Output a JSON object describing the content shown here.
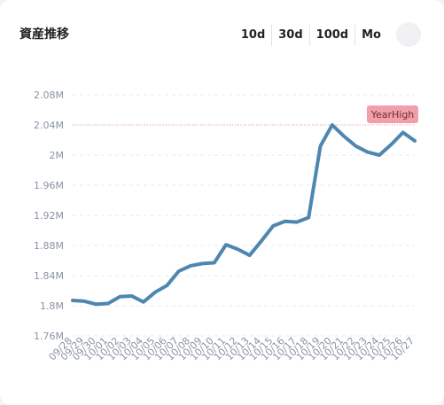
{
  "title": "資産推移",
  "buttons": [
    "10d",
    "30d",
    "100d",
    "Mo"
  ],
  "chart_data": {
    "type": "line",
    "categories": [
      "09/28",
      "09/29",
      "09/30",
      "10/01",
      "10/02",
      "10/03",
      "10/04",
      "10/05",
      "10/06",
      "10/07",
      "10/08",
      "10/09",
      "10/10",
      "10/11",
      "10/12",
      "10/13",
      "10/14",
      "10/15",
      "10/16",
      "10/17",
      "10/18",
      "10/19",
      "10/20",
      "10/21",
      "10/22",
      "10/23",
      "10/24",
      "10/25",
      "10/26",
      "10/27"
    ],
    "values": [
      1807000,
      1806000,
      1802000,
      1803000,
      1812000,
      1813000,
      1805000,
      1818000,
      1827000,
      1846000,
      1853000,
      1856000,
      1857000,
      1881000,
      1875000,
      1867000,
      1886000,
      1906000,
      1912000,
      1911000,
      1917000,
      2012000,
      2040000,
      2025000,
      2012000,
      2004000,
      2000000,
      2014000,
      2030000,
      2019000
    ],
    "color": "#4f86b0",
    "ylim": [
      1760000,
      2080000
    ],
    "yticks": [
      {
        "value": 1760000,
        "label": "1.76M"
      },
      {
        "value": 1800000,
        "label": "1.8M"
      },
      {
        "value": 1840000,
        "label": "1.84M"
      },
      {
        "value": 1880000,
        "label": "1.88M"
      },
      {
        "value": 1920000,
        "label": "1.92M"
      },
      {
        "value": 1960000,
        "label": "1.96M"
      },
      {
        "value": 2000000,
        "label": "2M"
      },
      {
        "value": 2040000,
        "label": "2.04M"
      },
      {
        "value": 2080000,
        "label": "2.08M"
      }
    ],
    "grid": true,
    "reference_line": {
      "value": 2040000,
      "label": "YearHigh",
      "color": "#f0a0a8"
    }
  }
}
